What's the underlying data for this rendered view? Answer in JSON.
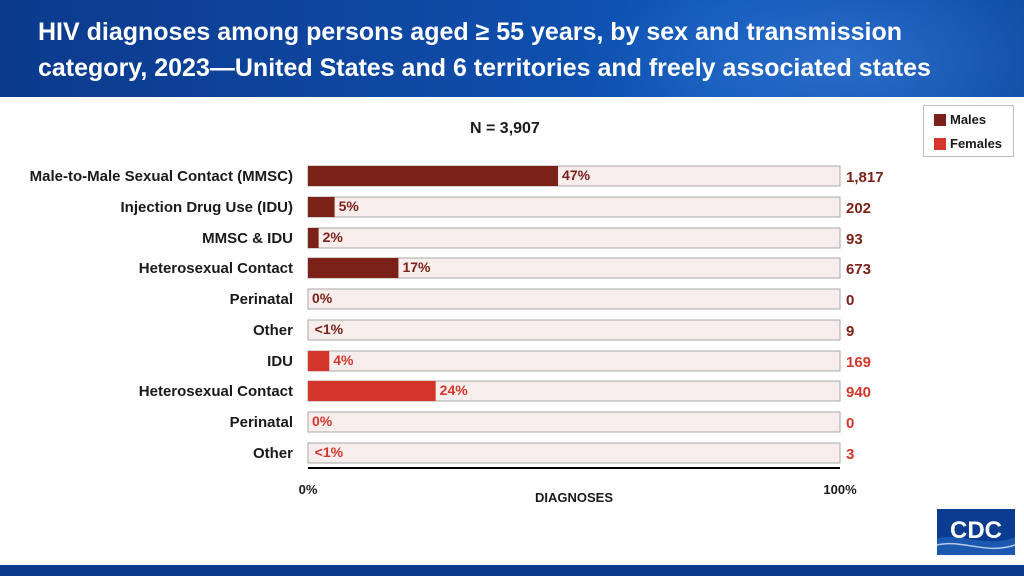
{
  "title": "HIV diagnoses among persons aged ≥ 55 years, by sex and transmission category, 2023—United States and 6 territories and freely associated states",
  "logo_text": "CDC",
  "colors": {
    "males": "#7b2118",
    "females": "#d4362b",
    "track_border": "#a9a9a9",
    "track_fill": "#f7eded",
    "axis": "#000000",
    "header": "#0f4aa6"
  },
  "chart_data": {
    "type": "bar",
    "orientation": "horizontal",
    "title": "N = 3,907",
    "xlabel": "DIAGNOSES",
    "xlim": [
      0,
      100
    ],
    "x_tick_labels": [
      "0%",
      "100%"
    ],
    "legend": {
      "position": "top-right",
      "entries": [
        {
          "name": "Males",
          "color": "#7b2118"
        },
        {
          "name": "Females",
          "color": "#d4362b"
        }
      ]
    },
    "categories": [
      "Male-to-Male Sexual Contact (MMSC)",
      "Injection Drug Use (IDU)",
      "MMSC & IDU",
      "Heterosexual Contact",
      "Perinatal",
      "Other",
      "IDU",
      "Heterosexual Contact",
      "Perinatal",
      "Other"
    ],
    "series_of_row": [
      "Males",
      "Males",
      "Males",
      "Males",
      "Males",
      "Males",
      "Females",
      "Females",
      "Females",
      "Females"
    ],
    "percents": [
      47,
      5,
      2,
      17,
      0,
      0.5,
      4,
      24,
      0,
      0.5
    ],
    "percent_labels": [
      "47%",
      "5%",
      "2%",
      "17%",
      "0%",
      "<1%",
      "4%",
      "24%",
      "0%",
      "<1%"
    ],
    "counts": [
      "1,817",
      "202",
      "93",
      "673",
      "0",
      "9",
      "169",
      "940",
      "0",
      "3"
    ]
  }
}
